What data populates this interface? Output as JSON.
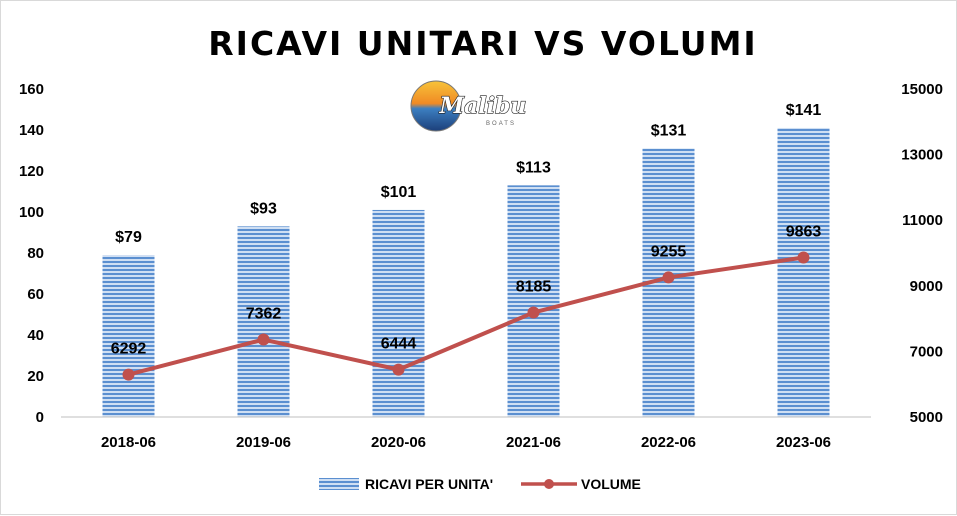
{
  "chart_data": {
    "type": "bar",
    "title": "RICAVI UNITARI VS VOLUMI",
    "logo_text": "Malibu",
    "logo_subtext": "BOATS",
    "categories": [
      "2018-06",
      "2019-06",
      "2020-06",
      "2021-06",
      "2022-06",
      "2023-06"
    ],
    "series": [
      {
        "name": "RICAVI PER UNITA'",
        "type": "bar",
        "axis": "left",
        "values": [
          79,
          93,
          101,
          113,
          131,
          141
        ],
        "labels": [
          "$79",
          "$93",
          "$101",
          "$113",
          "$131",
          "$141"
        ],
        "color": "#5b8fd0"
      },
      {
        "name": "VOLUME",
        "type": "line",
        "axis": "right",
        "values": [
          6292,
          7362,
          6444,
          8185,
          9255,
          9863
        ],
        "labels": [
          "6292",
          "7362",
          "6444",
          "8185",
          "9255",
          "9863"
        ],
        "color": "#c0504d"
      }
    ],
    "ylim_left": [
      0,
      160
    ],
    "yticks_left": [
      0,
      20,
      40,
      60,
      80,
      100,
      120,
      140,
      160
    ],
    "ylim_right": [
      5000,
      15000
    ],
    "yticks_right": [
      5000,
      7000,
      9000,
      11000,
      13000,
      15000
    ],
    "grid": false,
    "legend_position": "bottom"
  }
}
